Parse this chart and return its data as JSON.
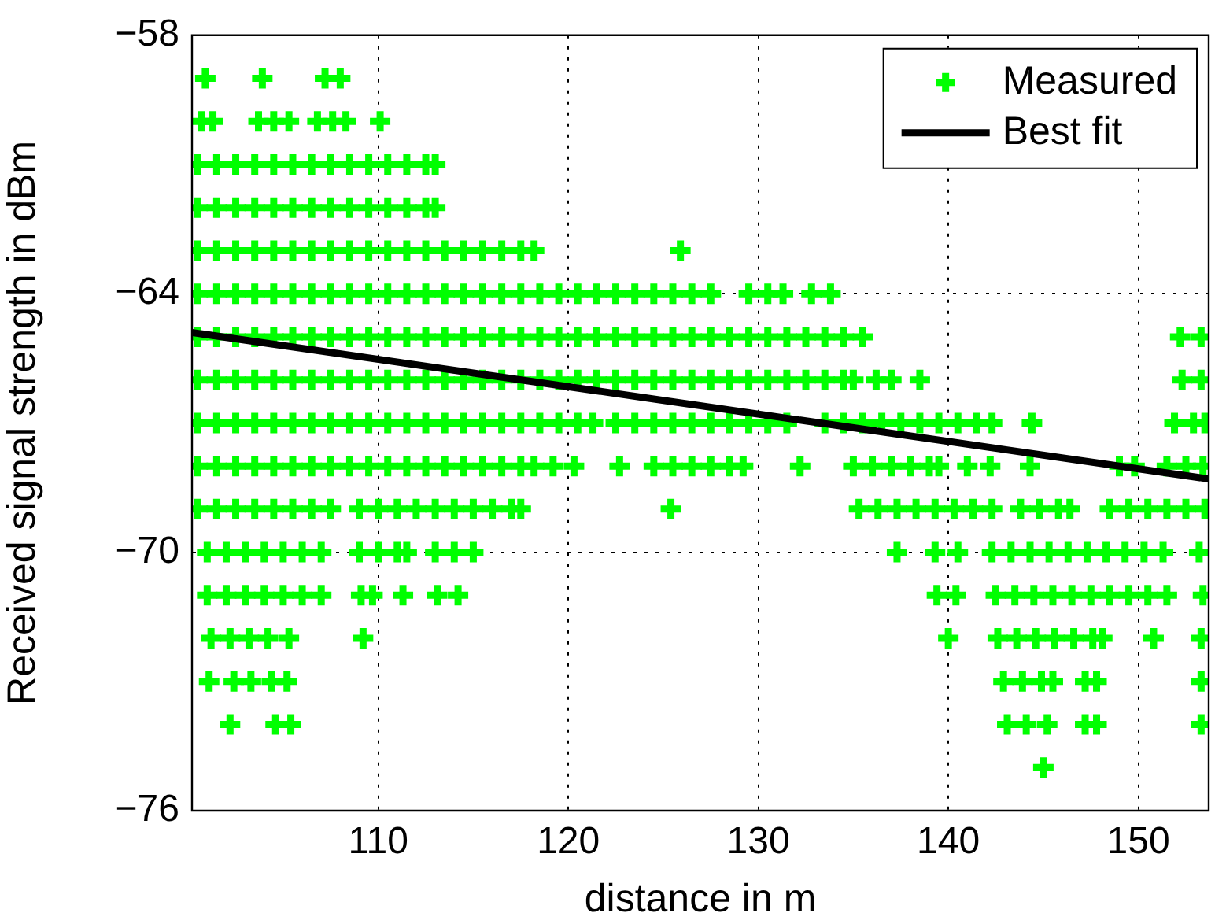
{
  "chart_data": {
    "type": "scatter",
    "xlabel": "distance in m",
    "ylabel": "Received signal strength in dBm",
    "xlim": [
      100.2,
      153.7
    ],
    "xticks": [
      110,
      120,
      130,
      140,
      150
    ],
    "ylim": [
      -76,
      -58
    ],
    "yticks": [
      {
        "value": -58,
        "label": "−58"
      },
      {
        "value": -64,
        "label": "−64"
      },
      {
        "value": -70,
        "label": "−70"
      },
      {
        "value": -76,
        "label": "−76"
      }
    ],
    "grid": true,
    "legend": "top right",
    "series": [
      {
        "name": "Measured",
        "type": "scatter",
        "marker": "cross",
        "color": "#00ff00",
        "x": [
          100.9,
          103.9,
          107.2,
          108.0,
          100.7,
          101.3,
          103.7,
          104.5,
          105.3,
          106.8,
          107.6,
          108.3,
          110.1,
          100.5,
          101.5,
          102.5,
          103.5,
          104.5,
          105.5,
          106.5,
          107.5,
          108.5,
          109.5,
          110.5,
          111.5,
          112.5,
          113.0,
          100.5,
          101.5,
          102.5,
          103.5,
          104.5,
          105.5,
          106.5,
          107.5,
          108.5,
          109.5,
          110.5,
          111.5,
          112.5,
          113.0,
          100.5,
          101.5,
          102.5,
          103.5,
          104.5,
          105.5,
          106.5,
          107.5,
          108.5,
          109.5,
          110.5,
          111.5,
          112.5,
          113.5,
          114.5,
          115.5,
          116.5,
          117.5,
          118.2,
          125.9,
          100.5,
          101.5,
          102.5,
          103.5,
          104.5,
          105.5,
          106.5,
          107.5,
          108.5,
          109.5,
          110.5,
          111.5,
          112.5,
          113.5,
          114.5,
          115.5,
          116.5,
          117.5,
          118.5,
          119.5,
          120.5,
          121.5,
          122.5,
          123.5,
          124.5,
          125.5,
          126.5,
          127.5,
          129.5,
          130.5,
          131.3,
          132.8,
          133.8,
          100.5,
          101.5,
          102.5,
          103.5,
          104.5,
          105.5,
          106.5,
          107.5,
          108.5,
          109.5,
          110.5,
          111.5,
          112.5,
          113.5,
          114.5,
          115.5,
          116.5,
          117.5,
          118.5,
          119.5,
          120.5,
          121.5,
          122.5,
          123.5,
          124.5,
          125.5,
          126.5,
          127.5,
          128.5,
          129.5,
          130.5,
          131.5,
          132.5,
          133.5,
          134.5,
          135.5,
          152.2,
          153.3,
          100.5,
          101.5,
          102.5,
          103.5,
          104.5,
          105.5,
          106.5,
          107.5,
          108.5,
          109.5,
          110.5,
          111.5,
          112.5,
          113.5,
          114.5,
          115.5,
          116.5,
          117.5,
          118.5,
          119.5,
          120.5,
          121.5,
          122.5,
          123.5,
          124.5,
          125.5,
          126.5,
          127.5,
          128.5,
          129.5,
          130.5,
          131.5,
          132.5,
          133.5,
          134.5,
          135.0,
          136.2,
          137.0,
          138.5,
          152.3,
          153.3,
          100.5,
          101.5,
          102.5,
          103.5,
          104.5,
          105.5,
          106.5,
          107.5,
          108.5,
          109.5,
          110.5,
          111.5,
          112.5,
          113.5,
          114.5,
          115.5,
          116.5,
          117.5,
          118.5,
          119.5,
          120.5,
          121.3,
          122.5,
          123.5,
          124.5,
          125.5,
          126.5,
          127.5,
          128.5,
          129.5,
          130.5,
          131.5,
          133.5,
          134.5,
          135.5,
          136.5,
          137.5,
          138.5,
          139.5,
          140.5,
          141.5,
          142.3,
          144.4,
          151.9,
          152.9,
          153.5,
          100.5,
          101.5,
          102.5,
          103.5,
          104.5,
          105.5,
          106.5,
          107.5,
          108.5,
          109.5,
          110.5,
          111.5,
          112.5,
          113.5,
          114.5,
          115.5,
          116.5,
          117.5,
          118.2,
          119.2,
          120.3,
          122.7,
          124.5,
          125.5,
          126.5,
          127.5,
          128.5,
          129.2,
          132.2,
          135.0,
          136.0,
          137.0,
          138.0,
          139.0,
          139.5,
          141.0,
          142.2,
          144.3,
          149.0,
          149.8,
          151.5,
          152.5,
          153.4,
          100.5,
          101.5,
          102.5,
          103.5,
          104.5,
          105.5,
          106.5,
          107.5,
          109.0,
          110.0,
          111.0,
          112.0,
          113.0,
          114.0,
          115.0,
          116.0,
          117.0,
          117.5,
          125.4,
          135.3,
          136.3,
          137.3,
          138.3,
          139.3,
          140.3,
          141.3,
          142.3,
          143.8,
          144.8,
          145.8,
          146.4,
          148.5,
          149.5,
          150.5,
          151.5,
          152.5,
          153.5,
          101.0,
          102.0,
          103.0,
          104.0,
          105.0,
          106.0,
          107.0,
          109.0,
          110.0,
          111.0,
          111.5,
          113.0,
          114.0,
          115.0,
          137.3,
          139.3,
          140.5,
          142.3,
          143.3,
          144.3,
          145.3,
          146.3,
          147.3,
          148.3,
          149.3,
          150.3,
          151.3,
          153.2,
          101.0,
          102.0,
          103.0,
          104.0,
          105.0,
          106.0,
          107.0,
          109.1,
          109.7,
          111.3,
          113.1,
          114.2,
          139.4,
          140.4,
          142.5,
          143.5,
          144.5,
          145.5,
          146.5,
          147.5,
          148.5,
          149.5,
          150.5,
          151.5,
          153.4,
          101.2,
          102.2,
          103.2,
          104.2,
          105.3,
          109.2,
          140.0,
          142.6,
          143.6,
          144.6,
          145.6,
          146.6,
          147.6,
          148.1,
          150.8,
          153.3,
          101.1,
          102.4,
          103.3,
          104.4,
          105.2,
          142.9,
          143.9,
          144.9,
          145.5,
          147.2,
          147.8,
          153.3,
          102.2,
          104.6,
          105.4,
          143.1,
          144.1,
          145.2,
          147.2,
          147.8,
          153.3,
          145.0
        ],
        "values": [
          -59,
          -59,
          -59,
          -59,
          -60,
          -60,
          -60,
          -60,
          -60,
          -60,
          -60,
          -60,
          -60,
          -61,
          -61,
          -61,
          -61,
          -61,
          -61,
          -61,
          -61,
          -61,
          -61,
          -61,
          -61,
          -61,
          -61,
          -62,
          -62,
          -62,
          -62,
          -62,
          -62,
          -62,
          -62,
          -62,
          -62,
          -62,
          -62,
          -62,
          -62,
          -63,
          -63,
          -63,
          -63,
          -63,
          -63,
          -63,
          -63,
          -63,
          -63,
          -63,
          -63,
          -63,
          -63,
          -63,
          -63,
          -63,
          -63,
          -63,
          -63,
          -64,
          -64,
          -64,
          -64,
          -64,
          -64,
          -64,
          -64,
          -64,
          -64,
          -64,
          -64,
          -64,
          -64,
          -64,
          -64,
          -64,
          -64,
          -64,
          -64,
          -64,
          -64,
          -64,
          -64,
          -64,
          -64,
          -64,
          -64,
          -64,
          -64,
          -64,
          -64,
          -64,
          -65,
          -65,
          -65,
          -65,
          -65,
          -65,
          -65,
          -65,
          -65,
          -65,
          -65,
          -65,
          -65,
          -65,
          -65,
          -65,
          -65,
          -65,
          -65,
          -65,
          -65,
          -65,
          -65,
          -65,
          -65,
          -65,
          -65,
          -65,
          -65,
          -65,
          -65,
          -65,
          -65,
          -65,
          -65,
          -65,
          -65,
          -65,
          -66,
          -66,
          -66,
          -66,
          -66,
          -66,
          -66,
          -66,
          -66,
          -66,
          -66,
          -66,
          -66,
          -66,
          -66,
          -66,
          -66,
          -66,
          -66,
          -66,
          -66,
          -66,
          -66,
          -66,
          -66,
          -66,
          -66,
          -66,
          -66,
          -66,
          -66,
          -66,
          -66,
          -66,
          -66,
          -66,
          -66,
          -66,
          -66,
          -66,
          -66,
          -67,
          -67,
          -67,
          -67,
          -67,
          -67,
          -67,
          -67,
          -67,
          -67,
          -67,
          -67,
          -67,
          -67,
          -67,
          -67,
          -67,
          -67,
          -67,
          -67,
          -67,
          -67,
          -67,
          -67,
          -67,
          -67,
          -67,
          -67,
          -67,
          -67,
          -67,
          -67,
          -67,
          -67,
          -67,
          -67,
          -67,
          -67,
          -67,
          -67,
          -67,
          -67,
          -67,
          -67,
          -67,
          -67,
          -68,
          -68,
          -68,
          -68,
          -68,
          -68,
          -68,
          -68,
          -68,
          -68,
          -68,
          -68,
          -68,
          -68,
          -68,
          -68,
          -68,
          -68,
          -68,
          -68,
          -68,
          -68,
          -68,
          -68,
          -68,
          -68,
          -68,
          -68,
          -68,
          -68,
          -68,
          -68,
          -68,
          -68,
          -68,
          -68,
          -68,
          -68,
          -68,
          -68,
          -68,
          -68,
          -68,
          -69,
          -69,
          -69,
          -69,
          -69,
          -69,
          -69,
          -69,
          -69,
          -69,
          -69,
          -69,
          -69,
          -69,
          -69,
          -69,
          -69,
          -69,
          -69,
          -69,
          -69,
          -69,
          -69,
          -69,
          -69,
          -69,
          -69,
          -69,
          -69,
          -69,
          -69,
          -69,
          -69,
          -69,
          -69,
          -69,
          -69,
          -70,
          -70,
          -70,
          -70,
          -70,
          -70,
          -70,
          -70,
          -70,
          -70,
          -70,
          -70,
          -70,
          -70,
          -70,
          -70,
          -70,
          -70,
          -70,
          -70,
          -70,
          -70,
          -70,
          -70,
          -70,
          -70,
          -70,
          -70,
          -71,
          -71,
          -71,
          -71,
          -71,
          -71,
          -71,
          -71,
          -71,
          -71,
          -71,
          -71,
          -71,
          -71,
          -71,
          -71,
          -71,
          -71,
          -71,
          -71,
          -71,
          -71,
          -71,
          -71,
          -71,
          -72,
          -72,
          -72,
          -72,
          -72,
          -72,
          -72,
          -72,
          -72,
          -72,
          -72,
          -72,
          -72,
          -72,
          -72,
          -72,
          -73,
          -73,
          -73,
          -73,
          -73,
          -73,
          -73,
          -73,
          -73,
          -73,
          -73,
          -73,
          -74,
          -74,
          -74,
          -74,
          -74,
          -74,
          -74,
          -74,
          -74,
          -75
        ]
      },
      {
        "name": "Best fit",
        "type": "line",
        "marker": "none",
        "color": "#000000",
        "line_style": "solid",
        "x": [
          100.2,
          153.7
        ],
        "values": [
          -64.9,
          -68.3
        ]
      }
    ]
  }
}
